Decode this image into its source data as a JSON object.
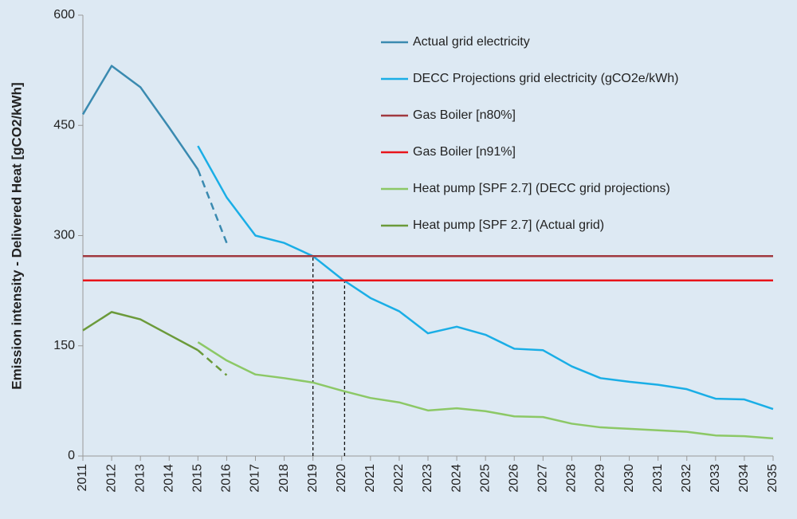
{
  "chart_data": {
    "type": "line",
    "y_label": "Emission intensity - Delivered Heat [gCO2/kWh]",
    "x": [
      2011,
      2012,
      2013,
      2014,
      2015,
      2016,
      2017,
      2018,
      2019,
      2020,
      2021,
      2022,
      2023,
      2024,
      2025,
      2026,
      2027,
      2028,
      2029,
      2030,
      2031,
      2032,
      2033,
      2034,
      2035
    ],
    "xlim": [
      2011,
      2035
    ],
    "xticks": [
      2011,
      2012,
      2013,
      2014,
      2015,
      2016,
      2017,
      2018,
      2019,
      2020,
      2021,
      2022,
      2023,
      2024,
      2025,
      2026,
      2027,
      2028,
      2029,
      2030,
      2031,
      2032,
      2033,
      2034,
      2035
    ],
    "ylim": [
      0,
      600
    ],
    "yticks": [
      0,
      150,
      300,
      450,
      600
    ],
    "series": [
      {
        "name": "Actual grid electricity",
        "color": "#3a8ab0",
        "values": [
          465,
          531,
          502,
          447,
          390,
          null,
          null,
          null,
          null,
          null,
          null,
          null,
          null,
          null,
          null,
          null,
          null,
          null,
          null,
          null,
          null,
          null,
          null,
          null,
          null
        ]
      },
      {
        "name": "DECC Projections grid electricity (gCO2e/kWh)",
        "color": "#1aaee6",
        "values": [
          null,
          null,
          null,
          null,
          422,
          352,
          300,
          290,
          272,
          241,
          215,
          197,
          167,
          176,
          165,
          146,
          144,
          122,
          106,
          101,
          97,
          91,
          78,
          77,
          64
        ]
      },
      {
        "name": "Gas Boiler [n80%]",
        "color": "#a0393f",
        "y": 272
      },
      {
        "name": "Gas Boiler [n91%]",
        "color": "#e8141b",
        "y": 239
      },
      {
        "name": "Heat pump [SPF 2.7] (DECC grid projections)",
        "color": "#8cc866",
        "values": [
          null,
          null,
          null,
          null,
          155,
          130,
          111,
          106,
          100,
          89,
          79,
          73,
          62,
          65,
          61,
          54,
          53,
          44,
          39,
          37,
          35,
          33,
          28,
          27,
          24
        ]
      },
      {
        "name": "Heat pump [SPF 2.7] (Actual grid)",
        "color": "#6b9a3a",
        "values": [
          171,
          196,
          186,
          165,
          144,
          null,
          null,
          null,
          null,
          null,
          null,
          null,
          null,
          null,
          null,
          null,
          null,
          null,
          null,
          null,
          null,
          null,
          null,
          null,
          null
        ]
      },
      {
        "color": "#3a8ab0",
        "dash": true,
        "values": [
          null,
          null,
          null,
          null,
          390,
          290,
          null,
          null,
          null,
          null,
          null,
          null,
          null,
          null,
          null,
          null,
          null,
          null,
          null,
          null,
          null,
          null,
          null,
          null,
          null
        ]
      },
      {
        "color": "#6b9a3a",
        "dash": true,
        "values": [
          null,
          null,
          null,
          null,
          144,
          110,
          null,
          null,
          null,
          null,
          null,
          null,
          null,
          null,
          null,
          null,
          null,
          null,
          null,
          null,
          null,
          null,
          null,
          null,
          null
        ]
      }
    ],
    "markers": [
      {
        "x": 2019,
        "y": 272
      },
      {
        "x": 2020.1,
        "y": 240
      }
    ]
  }
}
